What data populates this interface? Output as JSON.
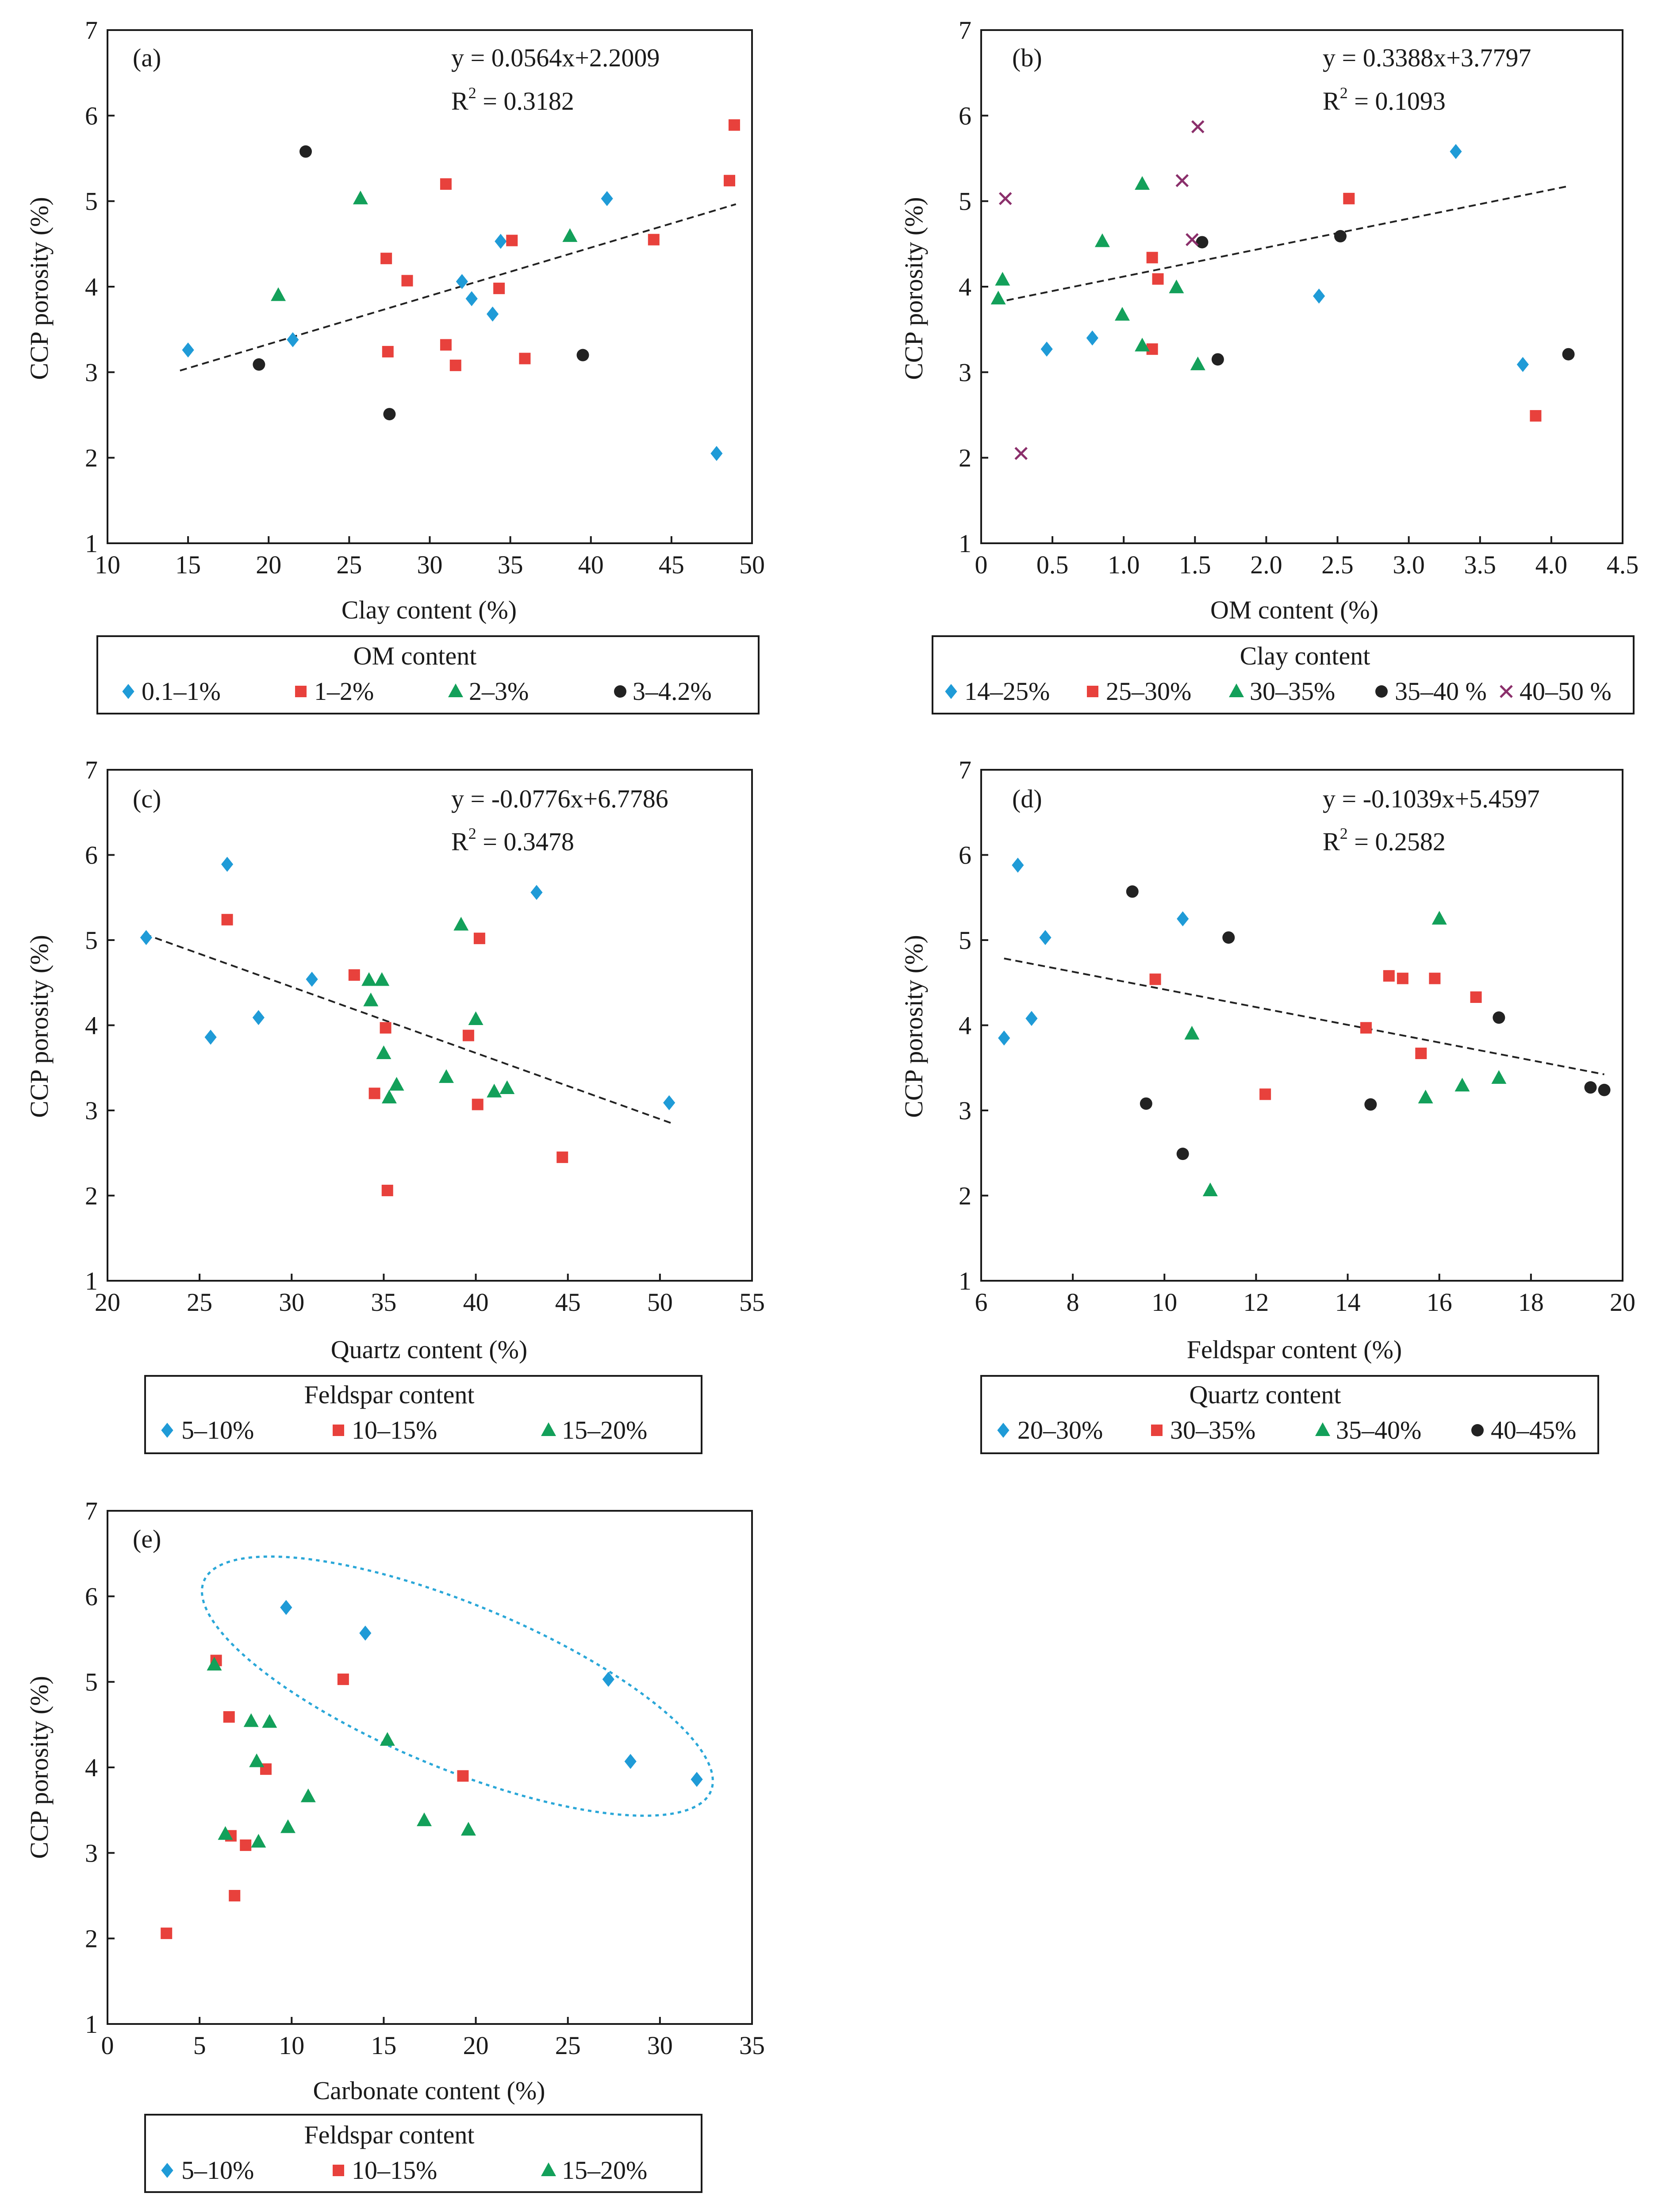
{
  "colors": {
    "blue": "#1f9bd7",
    "red": "#e8413c",
    "green": "#13a05a",
    "black": "#222222",
    "purple": "#8b2f6b",
    "ellipse": "#2aa7d8"
  },
  "chart_data": [
    {
      "id": "a",
      "type": "scatter",
      "panel_label": "(a)",
      "xlabel": "Clay content (%)",
      "ylabel": "CCP  porosity (%)",
      "xlim": [
        10,
        50
      ],
      "ylim": [
        1,
        7
      ],
      "xticks": [
        10,
        15,
        20,
        25,
        30,
        35,
        40,
        45,
        50
      ],
      "yticks": [
        1,
        2,
        3,
        4,
        5,
        6,
        7
      ],
      "equation": "y = 0.0564x+2.2009",
      "r2_prefix": "R",
      "r2_sup": "2",
      "r2_value": " = 0.3182",
      "trend": {
        "slope": 0.0564,
        "intercept": 2.2009,
        "x": [
          14.5,
          49.0
        ]
      },
      "legend": {
        "title": "OM content",
        "entries": [
          "0.1–1%",
          "1–2%",
          "2–3%",
          "3–4.2%"
        ]
      },
      "series": [
        {
          "name": "0.1–1%",
          "color": "blue",
          "marker": "diamond",
          "points": [
            [
              15,
              3.26
            ],
            [
              21.5,
              3.38
            ],
            [
              32,
              4.06
            ],
            [
              32.6,
              3.86
            ],
            [
              33.9,
              3.68
            ],
            [
              34.4,
              4.53
            ],
            [
              41,
              5.03
            ],
            [
              47.8,
              2.05
            ]
          ]
        },
        {
          "name": "1–2%",
          "color": "red",
          "marker": "square",
          "points": [
            [
              27.3,
              4.33
            ],
            [
              27.4,
              3.24
            ],
            [
              28.6,
              4.07
            ],
            [
              31,
              5.2
            ],
            [
              31,
              3.32
            ],
            [
              31.6,
              3.08
            ],
            [
              34.3,
              3.98
            ],
            [
              35.1,
              4.54
            ],
            [
              35.9,
              3.16
            ],
            [
              43.9,
              4.55
            ],
            [
              48.6,
              5.24
            ],
            [
              48.9,
              5.89
            ]
          ]
        },
        {
          "name": "2–3%",
          "color": "green",
          "marker": "triangle",
          "points": [
            [
              20.6,
              3.9
            ],
            [
              25.7,
              5.03
            ],
            [
              38.7,
              4.59
            ]
          ]
        },
        {
          "name": "3–4.2%",
          "color": "black",
          "marker": "circle",
          "points": [
            [
              19.4,
              3.09
            ],
            [
              22.3,
              5.58
            ],
            [
              27.5,
              2.51
            ],
            [
              39.5,
              3.2
            ]
          ]
        }
      ]
    },
    {
      "id": "b",
      "type": "scatter",
      "panel_label": "(b)",
      "xlabel": "OM content (%)",
      "ylabel": "CCP  porosity (%)",
      "xlim": [
        0,
        4.5
      ],
      "ylim": [
        1,
        7
      ],
      "xticks": [
        0,
        0.5,
        1.0,
        1.5,
        2.0,
        2.5,
        3.0,
        3.5,
        4.0,
        4.5
      ],
      "xtick_labels": [
        "0",
        "0.5",
        "1.0",
        "1.5",
        "2.0",
        "2.5",
        "3.0",
        "3.5",
        "4.0",
        "4.5"
      ],
      "yticks": [
        1,
        2,
        3,
        4,
        5,
        6,
        7
      ],
      "equation": "y = 0.3388x+3.7797",
      "r2_prefix": "R",
      "r2_sup": "2",
      "r2_value": " = 0.1093",
      "trend": {
        "slope": 0.3388,
        "intercept": 3.7797,
        "x": [
          0.1,
          4.12
        ]
      },
      "legend": {
        "title": "Clay content",
        "entries": [
          "14–25%",
          "25–30%",
          "30–35%",
          "35–40 %",
          "40–50 %"
        ]
      },
      "series": [
        {
          "name": "14–25%",
          "color": "blue",
          "marker": "diamond",
          "points": [
            [
              0.46,
              3.27
            ],
            [
              0.78,
              3.4
            ],
            [
              2.37,
              3.89
            ],
            [
              3.33,
              5.58
            ],
            [
              3.8,
              3.09
            ]
          ]
        },
        {
          "name": "25–30%",
          "color": "red",
          "marker": "square",
          "points": [
            [
              1.2,
              4.34
            ],
            [
              1.24,
              4.09
            ],
            [
              1.2,
              3.27
            ],
            [
              2.58,
              5.03
            ],
            [
              3.89,
              2.49
            ]
          ]
        },
        {
          "name": "30–35%",
          "color": "green",
          "marker": "triangle",
          "points": [
            [
              0.12,
              3.86
            ],
            [
              0.15,
              4.08
            ],
            [
              0.85,
              4.53
            ],
            [
              0.99,
              3.67
            ],
            [
              1.13,
              3.31
            ],
            [
              1.13,
              5.2
            ],
            [
              1.37,
              3.99
            ],
            [
              1.52,
              3.09
            ]
          ]
        },
        {
          "name": "35–40 %",
          "color": "black",
          "marker": "circle",
          "points": [
            [
              1.55,
              4.52
            ],
            [
              1.66,
              3.15
            ],
            [
              2.52,
              4.59
            ],
            [
              4.12,
              3.21
            ]
          ]
        },
        {
          "name": "40–50 %",
          "color": "purple",
          "marker": "cross",
          "points": [
            [
              0.17,
              5.03
            ],
            [
              0.28,
              2.05
            ],
            [
              1.41,
              5.24
            ],
            [
              1.48,
              4.55
            ],
            [
              1.52,
              5.87
            ]
          ]
        }
      ]
    },
    {
      "id": "c",
      "type": "scatter",
      "panel_label": "(c)",
      "xlabel": "Quartz content (%)",
      "ylabel": "CCP  porosity (%)",
      "xlim": [
        20,
        55
      ],
      "ylim": [
        1,
        7
      ],
      "xticks": [
        20,
        25,
        30,
        35,
        40,
        45,
        50,
        55
      ],
      "yticks": [
        1,
        2,
        3,
        4,
        5,
        6,
        7
      ],
      "equation": "y = -0.0776x+6.7786",
      "r2_prefix": "R",
      "r2_sup": "2",
      "r2_value": " = 0.3478",
      "trend": {
        "slope": -0.0776,
        "intercept": 6.7786,
        "x": [
          22.0,
          50.6
        ]
      },
      "legend": {
        "title": "Feldspar content",
        "entries": [
          "5–10%",
          "10–15%",
          "15–20%"
        ]
      },
      "series": [
        {
          "name": "5–10%",
          "color": "blue",
          "marker": "diamond",
          "points": [
            [
              22.1,
              5.03
            ],
            [
              25.6,
              3.86
            ],
            [
              26.5,
              5.89
            ],
            [
              28.2,
              4.09
            ],
            [
              31.1,
              4.54
            ],
            [
              43.3,
              5.56
            ],
            [
              50.5,
              3.09
            ]
          ]
        },
        {
          "name": "10–15%",
          "color": "red",
          "marker": "square",
          "points": [
            [
              26.5,
              5.24
            ],
            [
              33.4,
              4.59
            ],
            [
              34.5,
              3.2
            ],
            [
              35.1,
              3.97
            ],
            [
              35.2,
              2.06
            ],
            [
              39.6,
              3.88
            ],
            [
              40.1,
              3.07
            ],
            [
              40.2,
              5.02
            ],
            [
              44.7,
              2.45
            ]
          ]
        },
        {
          "name": "15–20%",
          "color": "green",
          "marker": "triangle",
          "points": [
            [
              34.2,
              4.53
            ],
            [
              34.3,
              4.29
            ],
            [
              34.9,
              4.53
            ],
            [
              35.0,
              3.67
            ],
            [
              35.3,
              3.15
            ],
            [
              35.7,
              3.3
            ],
            [
              38.4,
              3.39
            ],
            [
              39.2,
              5.18
            ],
            [
              40.0,
              4.07
            ],
            [
              41.0,
              3.22
            ],
            [
              41.7,
              3.26
            ]
          ]
        }
      ]
    },
    {
      "id": "d",
      "type": "scatter",
      "panel_label": "(d)",
      "xlabel": "Feldspar content (%)",
      "ylabel": "CCP  porosity (%)",
      "xlim": [
        6,
        20
      ],
      "ylim": [
        1,
        7
      ],
      "xticks": [
        6,
        8,
        10,
        12,
        14,
        16,
        18,
        20
      ],
      "yticks": [
        1,
        2,
        3,
        4,
        5,
        6,
        7
      ],
      "equation": "y = -0.1039x+5.4597",
      "r2_prefix": "R",
      "r2_sup": "2",
      "r2_value": " = 0.2582",
      "trend": {
        "slope": -0.1039,
        "intercept": 5.4597,
        "x": [
          6.5,
          19.6
        ]
      },
      "legend": {
        "title": "Quartz content",
        "entries": [
          "20–30%",
          "30–35%",
          "35–40%",
          "40–45%"
        ]
      },
      "series": [
        {
          "name": "20–30%",
          "color": "blue",
          "marker": "diamond",
          "points": [
            [
              6.5,
              3.85
            ],
            [
              6.8,
              5.88
            ],
            [
              7.1,
              4.08
            ],
            [
              7.4,
              5.03
            ],
            [
              10.4,
              5.25
            ]
          ]
        },
        {
          "name": "30–35%",
          "color": "red",
          "marker": "square",
          "points": [
            [
              9.8,
              4.54
            ],
            [
              12.2,
              3.19
            ],
            [
              14.4,
              3.97
            ],
            [
              14.9,
              4.58
            ],
            [
              15.2,
              4.55
            ],
            [
              15.6,
              3.67
            ],
            [
              15.9,
              4.55
            ],
            [
              16.8,
              4.33
            ]
          ]
        },
        {
          "name": "35–40%",
          "color": "green",
          "marker": "triangle",
          "points": [
            [
              10.6,
              3.9
            ],
            [
              11.0,
              2.06
            ],
            [
              15.7,
              3.15
            ],
            [
              16.0,
              5.25
            ],
            [
              16.5,
              3.29
            ],
            [
              17.3,
              3.38
            ]
          ]
        },
        {
          "name": "40–45%",
          "color": "black",
          "marker": "circle",
          "points": [
            [
              9.3,
              5.57
            ],
            [
              9.6,
              3.08
            ],
            [
              10.4,
              2.49
            ],
            [
              11.4,
              5.03
            ],
            [
              14.5,
              3.07
            ],
            [
              17.3,
              4.09
            ],
            [
              19.3,
              3.27
            ],
            [
              19.6,
              3.24
            ]
          ]
        }
      ]
    },
    {
      "id": "e",
      "type": "scatter",
      "panel_label": "(e)",
      "xlabel": "Carbonate content (%)",
      "ylabel": "CCP  porosity (%)",
      "xlim": [
        0,
        35
      ],
      "ylim": [
        1,
        7
      ],
      "xticks": [
        0,
        5,
        10,
        15,
        20,
        25,
        30,
        35
      ],
      "yticks": [
        1,
        2,
        3,
        4,
        5,
        6,
        7
      ],
      "ellipse": {
        "cx": 19.0,
        "cy": 4.95,
        "rx": 14.9,
        "ry": 0.62,
        "angle_deg": 22.5
      },
      "legend": {
        "title": "Feldspar content",
        "entries": [
          "5–10%",
          "10–15%",
          "15–20%"
        ]
      },
      "series": [
        {
          "name": "5–10%",
          "color": "blue",
          "marker": "diamond",
          "points": [
            [
              9.7,
              5.87
            ],
            [
              14.0,
              5.57
            ],
            [
              27.2,
              5.03
            ],
            [
              28.4,
              4.07
            ],
            [
              32.0,
              3.86
            ]
          ]
        },
        {
          "name": "10–15%",
          "color": "red",
          "marker": "square",
          "points": [
            [
              3.2,
              2.06
            ],
            [
              5.9,
              5.25
            ],
            [
              6.6,
              4.59
            ],
            [
              6.7,
              3.2
            ],
            [
              6.9,
              2.5
            ],
            [
              7.5,
              3.09
            ],
            [
              8.6,
              3.98
            ],
            [
              12.8,
              5.03
            ],
            [
              19.3,
              3.9
            ]
          ]
        },
        {
          "name": "15–20%",
          "color": "green",
          "marker": "triangle",
          "points": [
            [
              5.8,
              5.2
            ],
            [
              6.4,
              3.22
            ],
            [
              7.8,
              4.54
            ],
            [
              8.1,
              4.07
            ],
            [
              8.2,
              3.13
            ],
            [
              8.8,
              4.53
            ],
            [
              9.8,
              3.3
            ],
            [
              10.9,
              3.66
            ],
            [
              15.2,
              4.32
            ],
            [
              17.2,
              3.38
            ],
            [
              19.6,
              3.27
            ]
          ]
        }
      ]
    }
  ]
}
